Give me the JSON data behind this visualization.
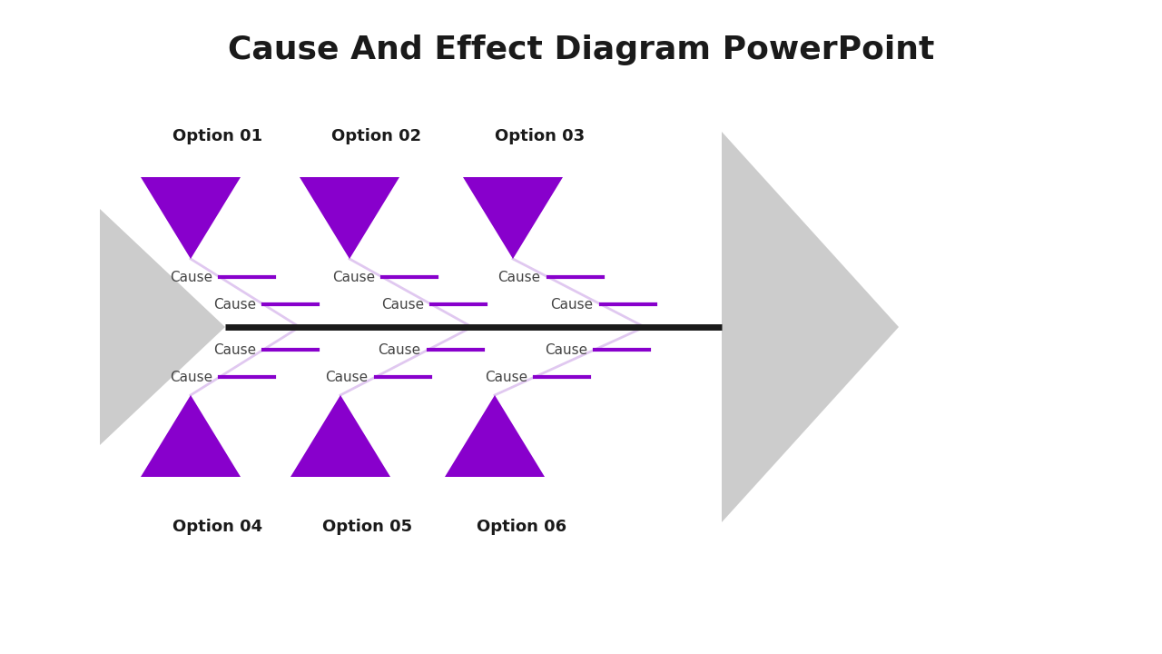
{
  "title": "Cause And Effect Diagram PowerPoint",
  "title_fontsize": 26,
  "title_fontweight": "bold",
  "background_color": "#ffffff",
  "spine_color": "#1a1a1a",
  "branch_color": "#e0c8f0",
  "purple_color": "#8800cc",
  "gray_color": "#cccccc",
  "cause_text_color": "#444444",
  "option_text_color": "#1a1a1a",
  "options_top": [
    "Option 01",
    "Option 02",
    "Option 03"
  ],
  "options_bottom": [
    "Option 04",
    "Option 05",
    "Option 06"
  ],
  "fig_width": 12.8,
  "fig_height": 7.2,
  "dpi": 100
}
